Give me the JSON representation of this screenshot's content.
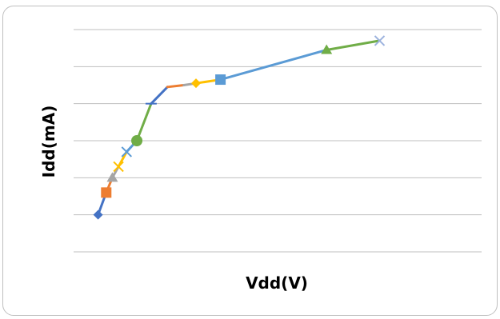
{
  "chart_data": {
    "type": "line",
    "title": "",
    "xlabel": "Vdd(V)",
    "ylabel": "Idd(mA)",
    "xlim": [
      0,
      10
    ],
    "ylim": [
      0,
      6
    ],
    "grid": true,
    "legend": "none",
    "series": [
      {
        "marker": "diamond",
        "color": "#4472C4",
        "points": [
          [
            0.6,
            1.0
          ],
          [
            0.8,
            1.6
          ]
        ]
      },
      {
        "marker": "square",
        "color": "#ED7D31",
        "points": [
          [
            0.8,
            1.6
          ],
          [
            0.95,
            2.0
          ]
        ]
      },
      {
        "marker": "triangle",
        "color": "#A5A5A5",
        "points": [
          [
            0.95,
            2.0
          ],
          [
            1.1,
            2.3
          ]
        ]
      },
      {
        "marker": "x",
        "color": "#FFC000",
        "points": [
          [
            1.1,
            2.3
          ],
          [
            1.3,
            2.7
          ]
        ]
      },
      {
        "marker": "x",
        "color": "#5B9BD5",
        "points": [
          [
            1.3,
            2.7
          ],
          [
            1.55,
            3.0
          ]
        ]
      },
      {
        "marker": "circle",
        "color": "#70AD47",
        "points": [
          [
            1.55,
            3.0
          ],
          [
            1.9,
            4.0
          ]
        ]
      },
      {
        "marker": "dash",
        "color": "#4472C4",
        "points": [
          [
            1.9,
            4.0
          ],
          [
            2.3,
            4.45
          ]
        ]
      },
      {
        "marker": "none",
        "color": "#ED7D31",
        "points": [
          [
            2.3,
            4.45
          ],
          [
            2.7,
            4.5
          ]
        ]
      },
      {
        "marker": "none",
        "color": "#A5A5A5",
        "points": [
          [
            2.7,
            4.5
          ],
          [
            3.0,
            4.55
          ]
        ]
      },
      {
        "marker": "diamond",
        "color": "#FFC000",
        "points": [
          [
            3.0,
            4.55
          ],
          [
            3.6,
            4.65
          ]
        ]
      },
      {
        "marker": "square",
        "color": "#5B9BD5",
        "points": [
          [
            3.6,
            4.65
          ],
          [
            6.2,
            5.45
          ]
        ]
      },
      {
        "marker": "triangle",
        "color": "#70AD47",
        "points": [
          [
            6.2,
            5.45
          ],
          [
            7.5,
            5.7
          ]
        ]
      },
      {
        "marker": "x",
        "color": "#9DB3DE",
        "points": [
          [
            7.5,
            5.7
          ]
        ]
      }
    ]
  }
}
